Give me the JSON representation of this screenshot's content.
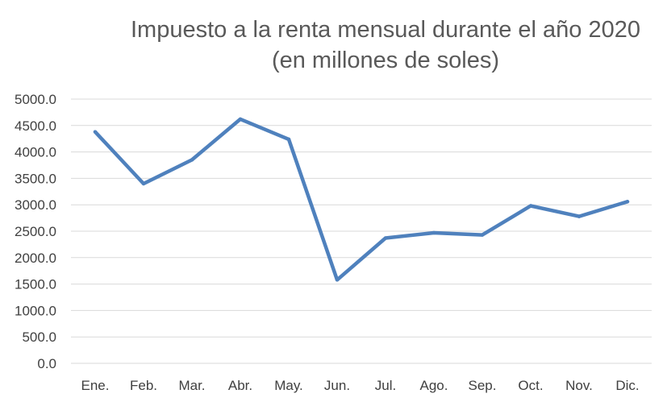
{
  "chart_data": {
    "type": "line",
    "title": "Impuesto a la renta mensual durante el año 2020",
    "subtitle": "(en millones de soles)",
    "xlabel": "",
    "ylabel": "",
    "categories": [
      "Ene.",
      "Feb.",
      "Mar.",
      "Abr.",
      "May.",
      "Jun.",
      "Jul.",
      "Ago.",
      "Sep.",
      "Oct.",
      "Nov.",
      "Dic."
    ],
    "series": [
      {
        "values": [
          4380,
          3400,
          3850,
          4620,
          4240,
          1580,
          2370,
          2470,
          2430,
          2980,
          2780,
          3060
        ]
      }
    ],
    "ylim": [
      0,
      5000
    ],
    "yticks": [
      "0.0",
      "500.0",
      "1000.0",
      "1500.0",
      "2000.0",
      "2500.0",
      "3000.0",
      "3500.0",
      "4000.0",
      "4500.0",
      "5000.0"
    ],
    "grid": true,
    "legend": "none",
    "colors": {
      "line": "#4f81bd",
      "grid": "#d9d9d9"
    }
  }
}
